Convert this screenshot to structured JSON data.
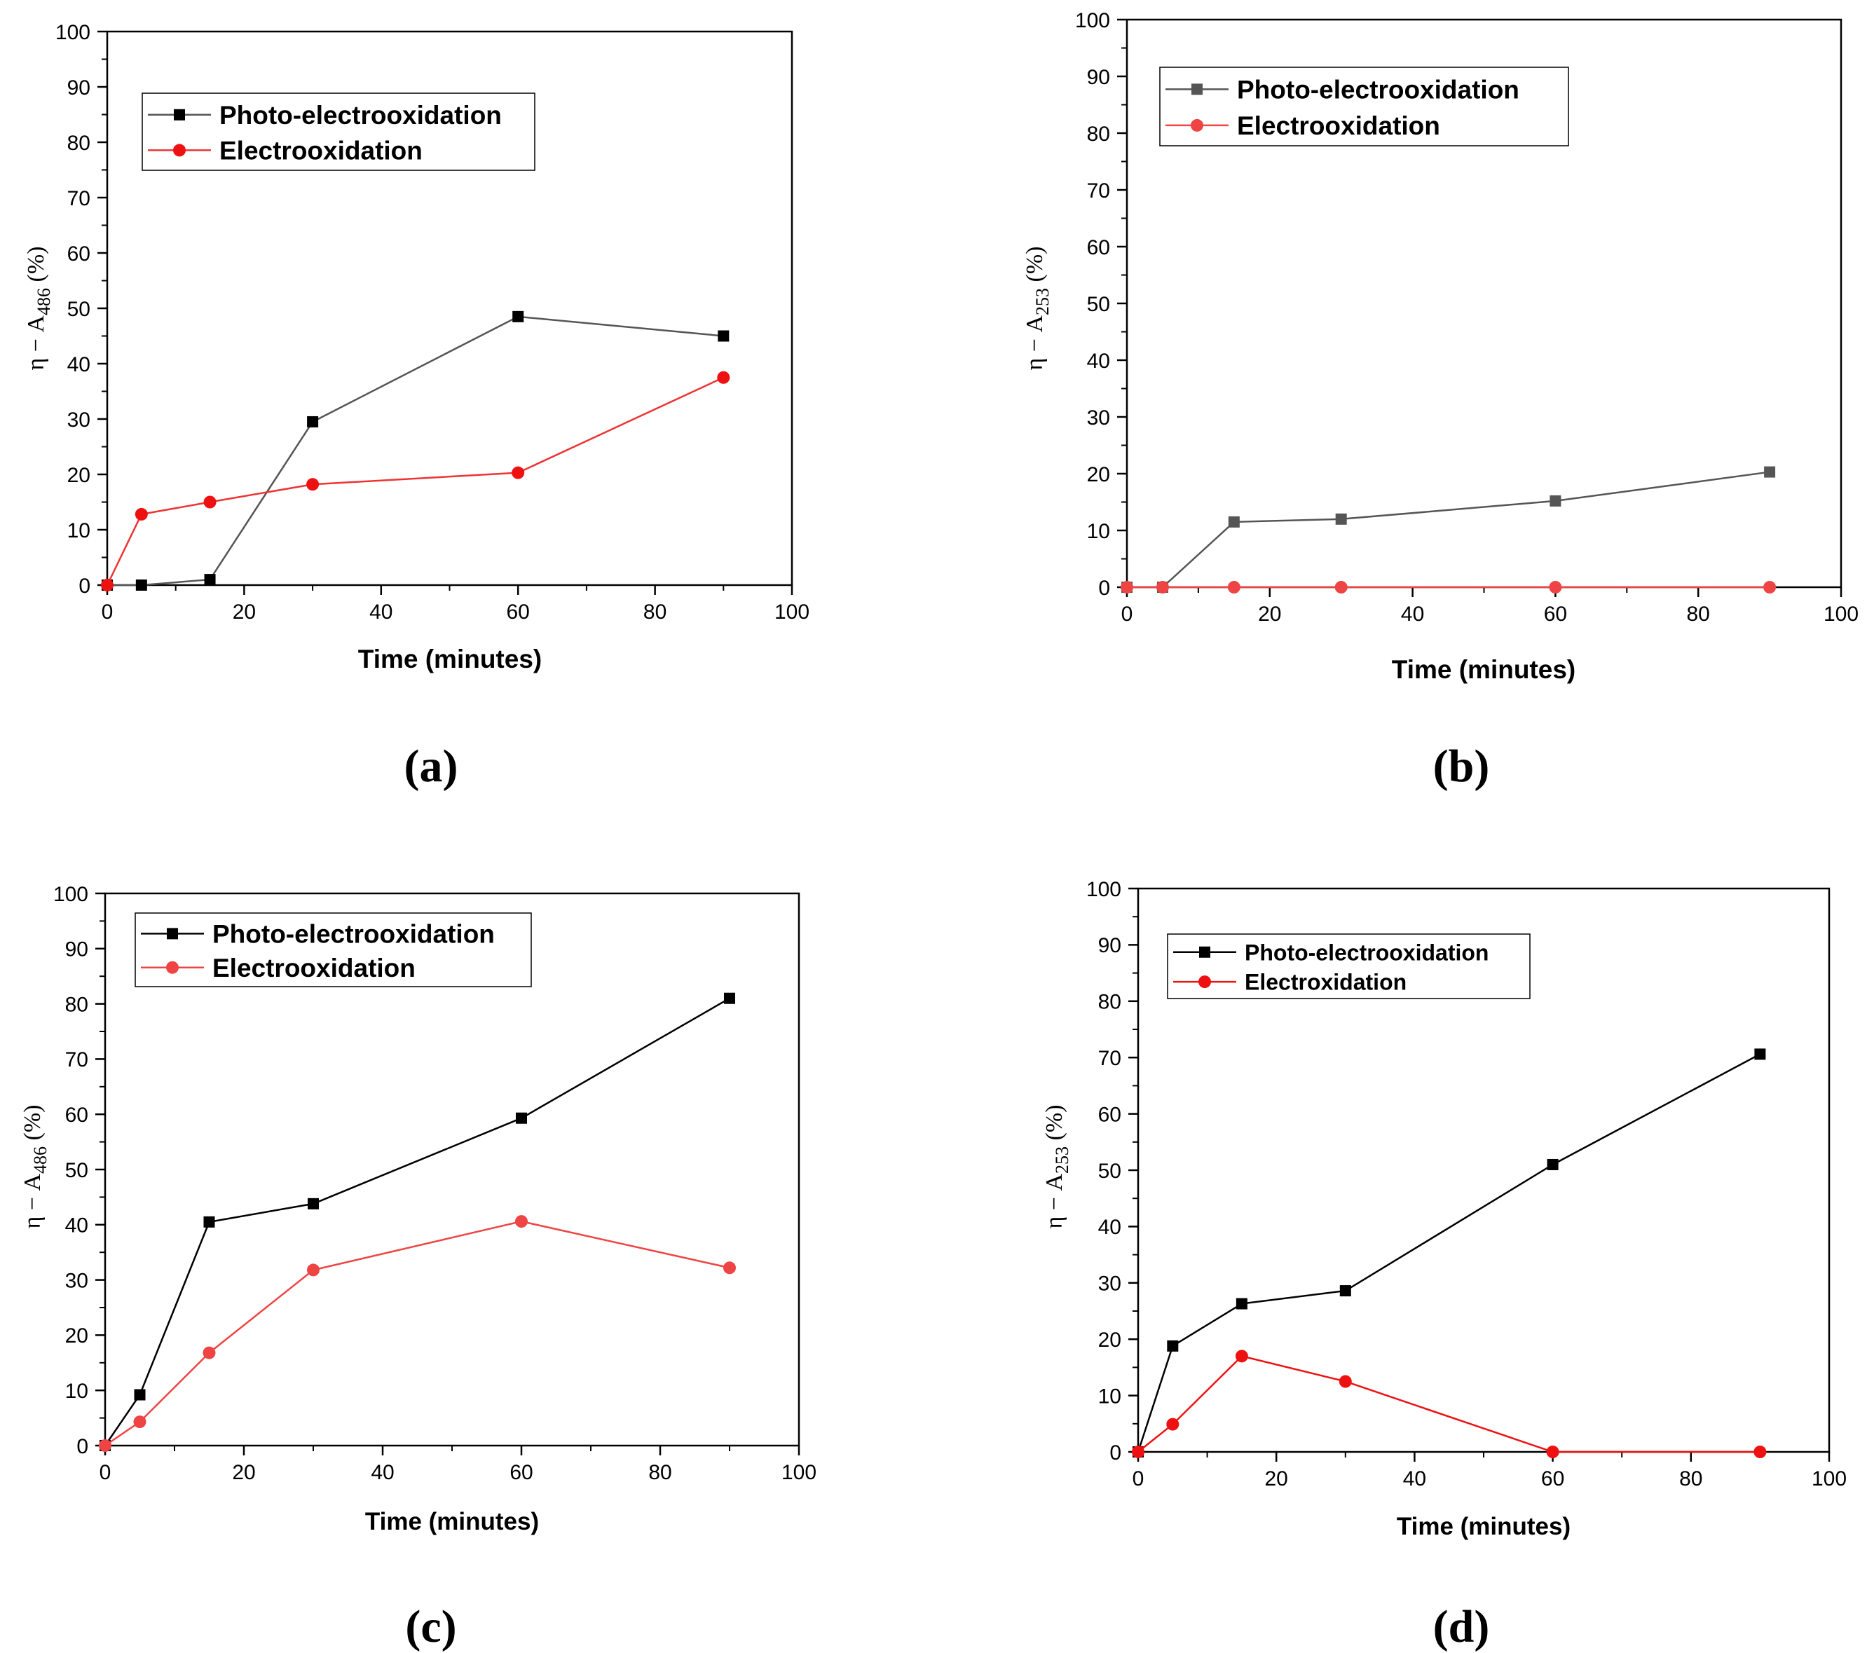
{
  "chart_data": [
    {
      "type": "line",
      "panel_label": "(a)",
      "ylabel_main": "η − A",
      "ylabel_sub": "486",
      "ylabel_suffix": " (%)",
      "xlabel": "Time (minutes)",
      "xlim": [
        0,
        100
      ],
      "ylim": [
        0,
        100
      ],
      "xticks": [
        0,
        20,
        40,
        60,
        80,
        100
      ],
      "yticks": [
        0,
        10,
        20,
        30,
        40,
        50,
        60,
        70,
        80,
        90,
        100
      ],
      "x": [
        0,
        5,
        15,
        30,
        60,
        90
      ],
      "legend_position": "top-left",
      "series": [
        {
          "name": "Photo-electrooxidation",
          "marker": "square",
          "color": "#000000",
          "line_color": "#555555",
          "values": [
            0,
            0,
            1,
            29.5,
            48.5,
            45
          ]
        },
        {
          "name": "Electrooxidation",
          "marker": "circle",
          "color": "#ee1111",
          "line_color": "#ee3333",
          "values": [
            0,
            12.8,
            15,
            18.2,
            20.3,
            37.5
          ]
        }
      ]
    },
    {
      "type": "line",
      "panel_label": "(b)",
      "ylabel_main": "η − A",
      "ylabel_sub": "253",
      "ylabel_suffix": " (%)",
      "xlabel": "Time (minutes)",
      "xlim": [
        0,
        100
      ],
      "ylim": [
        0,
        100
      ],
      "xticks": [
        0,
        20,
        40,
        60,
        80,
        100
      ],
      "yticks": [
        0,
        10,
        20,
        30,
        40,
        50,
        60,
        70,
        80,
        90,
        100
      ],
      "x": [
        0,
        5,
        15,
        30,
        60,
        90
      ],
      "legend_position": "top-left",
      "series": [
        {
          "name": "Photo-electrooxidation",
          "marker": "square",
          "color": "#555555",
          "line_color": "#555555",
          "values": [
            0,
            0,
            11.5,
            12,
            15.2,
            20.3
          ]
        },
        {
          "name": "Electrooxidation",
          "marker": "circle",
          "color": "#ee4444",
          "line_color": "#ee4444",
          "values": [
            0,
            0,
            0,
            0,
            0,
            0
          ]
        }
      ]
    },
    {
      "type": "line",
      "panel_label": "(c)",
      "ylabel_main": "η − A",
      "ylabel_sub": "486",
      "ylabel_suffix": " (%)",
      "xlabel": "Time (minutes)",
      "xlim": [
        0,
        100
      ],
      "ylim": [
        0,
        100
      ],
      "xticks": [
        0,
        20,
        40,
        60,
        80,
        100
      ],
      "yticks": [
        0,
        10,
        20,
        30,
        40,
        50,
        60,
        70,
        80,
        90,
        100
      ],
      "x": [
        0,
        5,
        15,
        30,
        60,
        90
      ],
      "legend_position": "top-left",
      "series": [
        {
          "name": "Photo-electrooxidation",
          "marker": "square",
          "color": "#000000",
          "line_color": "#000000",
          "values": [
            0,
            9.2,
            40.5,
            43.8,
            59.3,
            81
          ]
        },
        {
          "name": "Electrooxidation",
          "marker": "circle",
          "color": "#ee4444",
          "line_color": "#ee4444",
          "values": [
            0,
            4.3,
            16.8,
            31.8,
            40.6,
            32.2
          ]
        }
      ]
    },
    {
      "type": "line",
      "panel_label": "(d)",
      "ylabel_main": "η − A",
      "ylabel_sub": "253",
      "ylabel_suffix": " (%)",
      "xlabel": "Time (minutes)",
      "xlim": [
        0,
        100
      ],
      "ylim": [
        0,
        100
      ],
      "xticks": [
        0,
        20,
        40,
        60,
        80,
        100
      ],
      "yticks": [
        0,
        10,
        20,
        30,
        40,
        50,
        60,
        70,
        80,
        90,
        100
      ],
      "x": [
        0,
        5,
        15,
        30,
        60,
        90
      ],
      "legend_position": "top-left",
      "series": [
        {
          "name": "Photo-electrooxidation",
          "marker": "square",
          "color": "#000000",
          "line_color": "#000000",
          "values": [
            0,
            18.8,
            26.3,
            28.6,
            51,
            70.6
          ]
        },
        {
          "name": "Electroxidation",
          "marker": "circle",
          "color": "#ee1111",
          "line_color": "#ee1111",
          "values": [
            0,
            4.9,
            17,
            12.5,
            0,
            0
          ]
        }
      ]
    }
  ]
}
